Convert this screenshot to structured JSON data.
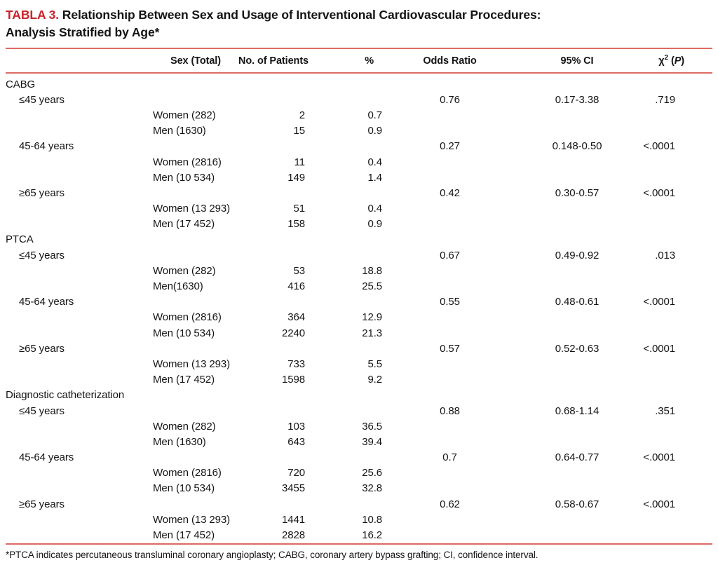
{
  "title": {
    "label": "TABLA 3.",
    "line1": "Relationship Between Sex and Usage of Interventional Cardiovascular Procedures:",
    "line2": "Analysis Stratified by Age*"
  },
  "accent_colors": {
    "title_red": "#c9252b",
    "rule_red": "#dc6a63"
  },
  "columns": {
    "sex": "Sex (Total)",
    "patients": "No. of Patients",
    "pct": "%",
    "odds_ratio": "Odds Ratio",
    "ci": "95% CI",
    "chi": {
      "symbol": "χ",
      "exponent": "2",
      "p_open": "(",
      "p": "P",
      "p_close": ")"
    }
  },
  "sections": [
    {
      "name": "CABG",
      "age_groups": [
        {
          "label": "≤45 years",
          "odds_ratio": "0.76",
          "ci": "0.17-3.38",
          "p": ".719",
          "rows": [
            {
              "sex": "Women (282)",
              "n": "2",
              "pct": "0.7"
            },
            {
              "sex": "Men (1630)",
              "n": "15",
              "pct": "0.9"
            }
          ]
        },
        {
          "label": "45-64 years",
          "odds_ratio": "0.27",
          "ci": "0.148-0.50",
          "p": "<.0001",
          "rows": [
            {
              "sex": "Women (2816)",
              "n": "11",
              "pct": "0.4"
            },
            {
              "sex": "Men (10 534)",
              "n": "149",
              "pct": "1.4"
            }
          ]
        },
        {
          "label": "≥65 years",
          "odds_ratio": "0.42",
          "ci": "0.30-0.57",
          "p": "<.0001",
          "rows": [
            {
              "sex": "Women (13 293)",
              "n": "51",
              "pct": "0.4"
            },
            {
              "sex": "Men (17 452)",
              "n": "158",
              "pct": "0.9"
            }
          ]
        }
      ]
    },
    {
      "name": "PTCA",
      "age_groups": [
        {
          "label": "≤45 years",
          "odds_ratio": "0.67",
          "ci": "0.49-0.92",
          "p": ".013",
          "rows": [
            {
              "sex": "Women (282)",
              "n": "53",
              "pct": "18.8"
            },
            {
              "sex": "Men(1630)",
              "n": "416",
              "pct": "25.5"
            }
          ]
        },
        {
          "label": "45-64 years",
          "odds_ratio": "0.55",
          "ci": "0.48-0.61",
          "p": "<.0001",
          "rows": [
            {
              "sex": "Women (2816)",
              "n": "364",
              "pct": "12.9"
            },
            {
              "sex": "Men (10 534)",
              "n": "2240",
              "pct": "21.3"
            }
          ]
        },
        {
          "label": "≥65 years",
          "odds_ratio": "0.57",
          "ci": "0.52-0.63",
          "p": "<.0001",
          "rows": [
            {
              "sex": "Women (13 293)",
              "n": "733",
              "pct": "5.5"
            },
            {
              "sex": "Men (17 452)",
              "n": "1598",
              "pct": "9.2"
            }
          ]
        }
      ]
    },
    {
      "name": "Diagnostic catheterization",
      "age_groups": [
        {
          "label": "≤45 years",
          "odds_ratio": "0.88",
          "ci": "0.68-1.14",
          "p": ".351",
          "rows": [
            {
              "sex": "Women (282)",
              "n": "103",
              "pct": "36.5"
            },
            {
              "sex": "Men (1630)",
              "n": "643",
              "pct": "39.4"
            }
          ]
        },
        {
          "label": "45-64 years",
          "odds_ratio": "0.7",
          "ci": "0.64-0.77",
          "p": "<.0001",
          "rows": [
            {
              "sex": "Women (2816)",
              "n": "720",
              "pct": "25.6"
            },
            {
              "sex": "Men (10 534)",
              "n": "3455",
              "pct": "32.8"
            }
          ]
        },
        {
          "label": "≥65 years",
          "odds_ratio": "0.62",
          "ci": "0.58-0.67",
          "p": "<.0001",
          "rows": [
            {
              "sex": "Women (13 293)",
              "n": "1441",
              "pct": "10.8"
            },
            {
              "sex": "Men (17 452)",
              "n": "2828",
              "pct": "16.2"
            }
          ]
        }
      ]
    }
  ],
  "footnote": "*PTCA indicates percutaneous transluminal coronary angioplasty; CABG, coronary artery bypass grafting; CI, confidence interval."
}
